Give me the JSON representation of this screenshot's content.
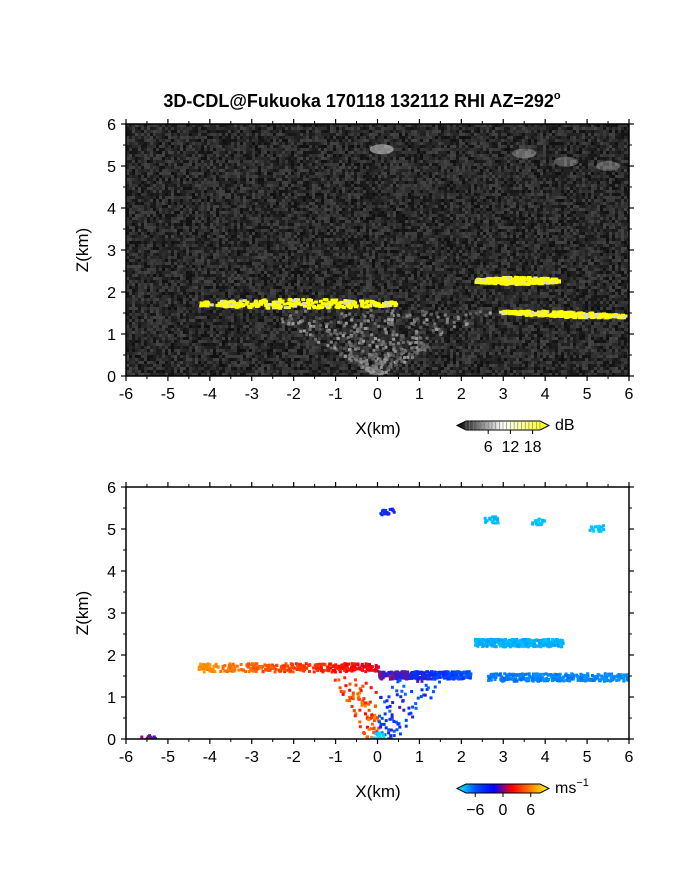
{
  "title": "3D-CDL@Fukuoka 170118 132112 RHI AZ=292",
  "title_superscript": "o",
  "chart_data": [
    {
      "type": "heatmap",
      "panel": "reflectivity",
      "xlabel": "X(km)",
      "ylabel": "Z(km)",
      "xlim": [
        -6,
        6
      ],
      "ylim": [
        0,
        6
      ],
      "x_ticks": [
        "-6",
        "-5",
        "-4",
        "-3",
        "-2",
        "-1",
        "0",
        "1",
        "2",
        "3",
        "4",
        "5",
        "6"
      ],
      "y_ticks": [
        "0",
        "1",
        "2",
        "3",
        "4",
        "5",
        "6"
      ],
      "background": "#1c1c1c",
      "colorbar": {
        "unit": "dB",
        "ticks": [
          "6",
          "12",
          "18"
        ],
        "range": [
          0,
          20
        ],
        "colors": [
          "#000000",
          "#ffffff",
          "#ffff00"
        ]
      },
      "layers": [
        {
          "x_start": -4.3,
          "x_end": 0.4,
          "z_base": 1.75,
          "z_top": 1.75,
          "thickness": 0.22,
          "color": "#ffff00"
        },
        {
          "x_start": 2.3,
          "x_end": 4.3,
          "z_base": 2.3,
          "z_top": 2.3,
          "thickness": 0.18,
          "color": "#ffff00"
        },
        {
          "x_start": 2.9,
          "x_end": 5.9,
          "z_base": 1.55,
          "z_top": 1.45,
          "thickness": 0.14,
          "color": "#ffff00"
        }
      ],
      "faint_features": [
        {
          "x": 0.1,
          "z": 5.4,
          "intensity": 0.55
        },
        {
          "x": 3.5,
          "z": 5.3,
          "intensity": 0.35
        },
        {
          "x": 4.5,
          "z": 5.1,
          "intensity": 0.3
        },
        {
          "x": 5.5,
          "z": 5.0,
          "intensity": 0.3
        }
      ]
    },
    {
      "type": "heatmap",
      "panel": "doppler-velocity",
      "xlabel": "X(km)",
      "ylabel": "Z(km)",
      "xlim": [
        -6,
        6
      ],
      "ylim": [
        0,
        6
      ],
      "x_ticks": [
        "-6",
        "-5",
        "-4",
        "-3",
        "-2",
        "-1",
        "0",
        "1",
        "2",
        "3",
        "4",
        "5",
        "6"
      ],
      "y_ticks": [
        "0",
        "1",
        "2",
        "3",
        "4",
        "5",
        "6"
      ],
      "background": "#ffffff",
      "colorbar": {
        "unit": "ms",
        "unit_superscript": "−1",
        "ticks": [
          "−6",
          "0",
          "6"
        ],
        "range": [
          -8,
          8
        ],
        "colors": [
          "#00ffff",
          "#0050ff",
          "#0000ff",
          "#ff0000",
          "#ff8000",
          "#ffff00"
        ]
      },
      "layers": [
        {
          "x_start": -4.3,
          "x_end": 0.0,
          "z": 1.73,
          "thickness": 0.2,
          "velocity_start": 4.5,
          "velocity_end": 0.5
        },
        {
          "x_start": 0.0,
          "x_end": 2.2,
          "z": 1.55,
          "thickness": 0.18,
          "velocity_start": -1.0,
          "velocity_end": -3.0
        },
        {
          "x_start": 2.6,
          "x_end": 6.0,
          "z": 1.5,
          "thickness": 0.18,
          "velocity_start": -4.0,
          "velocity_end": -4.5
        },
        {
          "x_start": 2.3,
          "x_end": 4.4,
          "z": 2.32,
          "thickness": 0.18,
          "velocity_start": -5.5,
          "velocity_end": -5.5
        }
      ],
      "clusters": [
        {
          "x": 0.2,
          "z": 5.45,
          "velocity": -2.0
        },
        {
          "x": 2.7,
          "z": 5.25,
          "velocity": -6.0
        },
        {
          "x": 3.8,
          "z": 5.2,
          "velocity": -6.0
        },
        {
          "x": 5.2,
          "z": 5.05,
          "velocity": -6.0
        },
        {
          "x": 0.0,
          "z": 0.1,
          "velocity": -7.0
        },
        {
          "x": -5.5,
          "z": 0.05,
          "velocity": -1.0
        }
      ]
    }
  ]
}
